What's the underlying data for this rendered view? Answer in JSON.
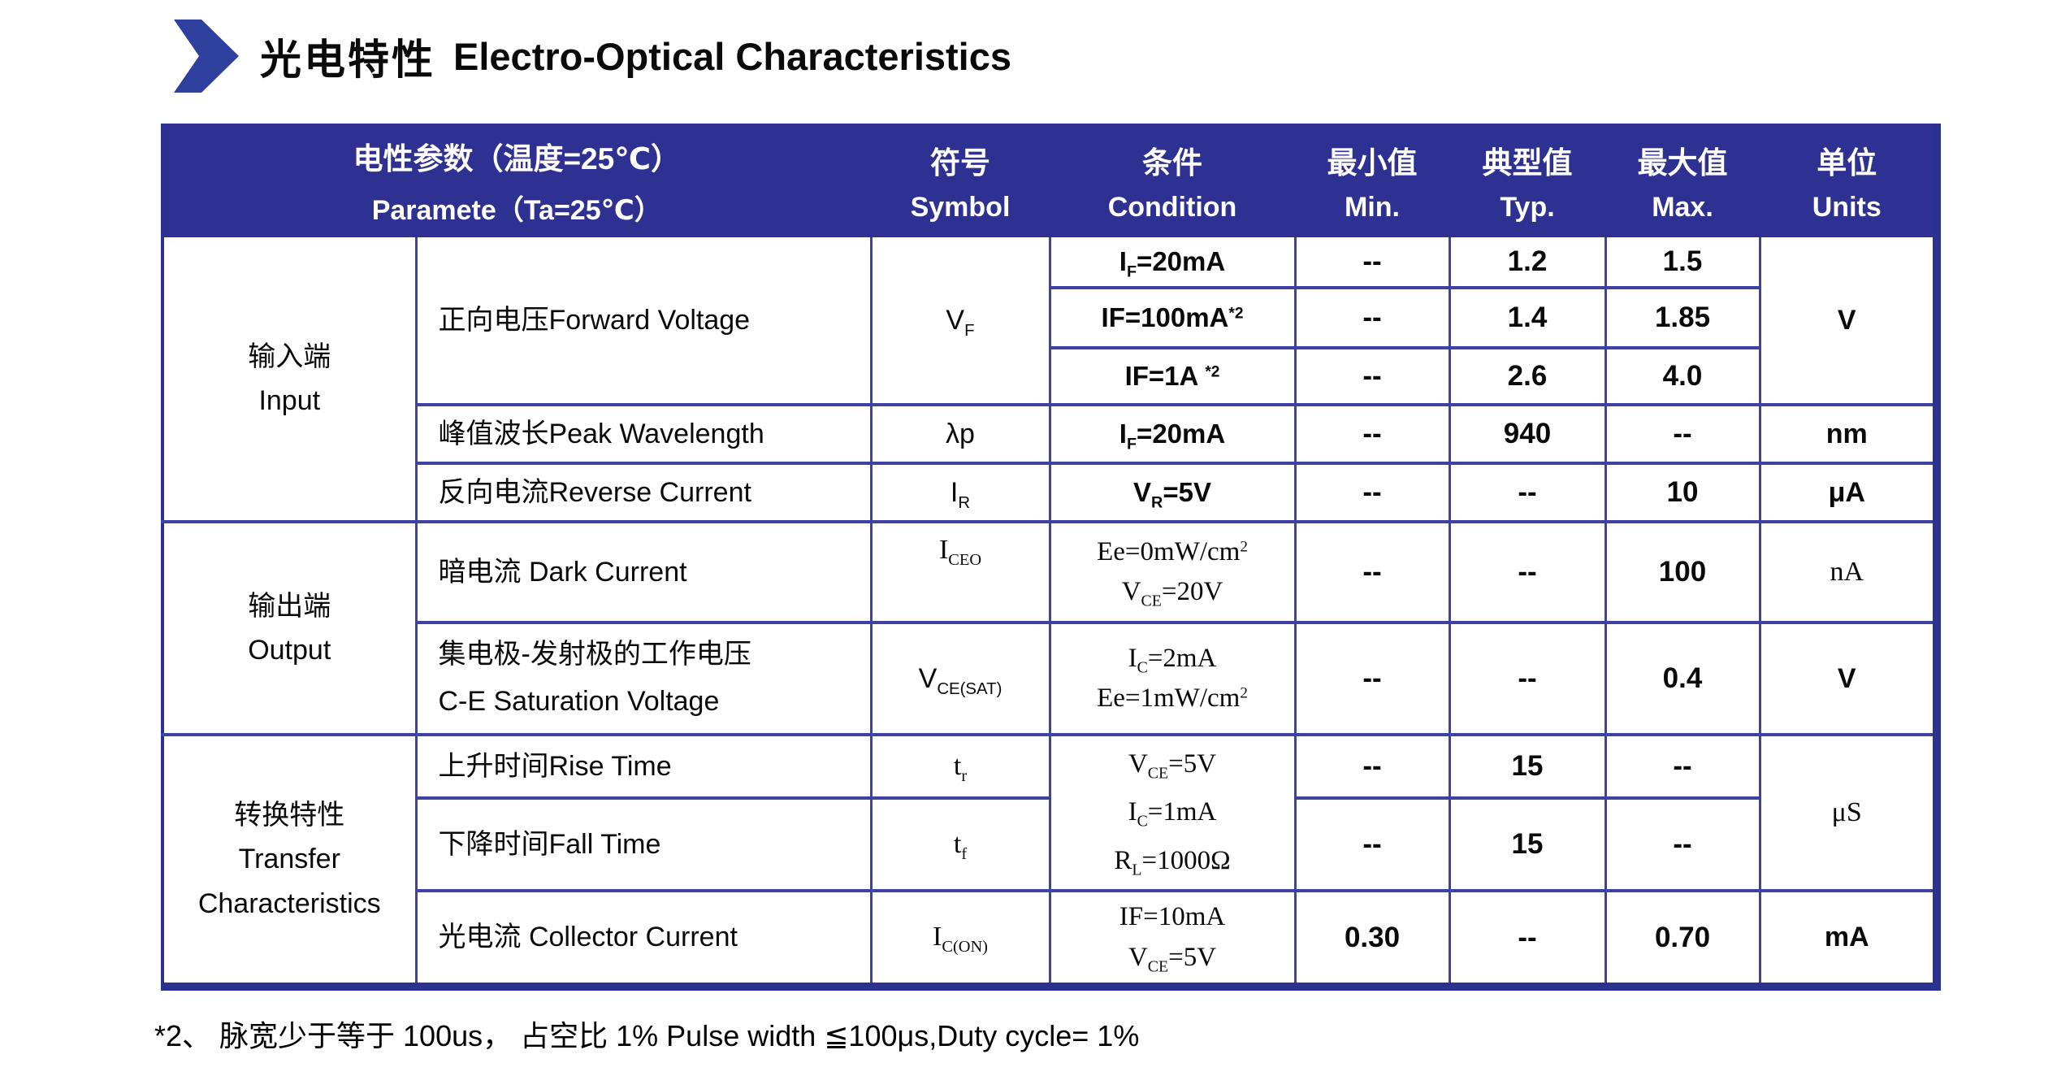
{
  "title": {
    "zh": "光电特性",
    "en": "Electro-Optical Characteristics"
  },
  "colors": {
    "header_bg": "#2e3192",
    "grid_line": "#3c43a2",
    "outer_border": "#2b3191",
    "chevron": "#2f3f9d",
    "header_text": "#ffffff",
    "body_text": "#0a0a0a"
  },
  "header": {
    "param": {
      "zh": "电性参数（温度=25℃）",
      "en": "Paramete（Ta=25℃）"
    },
    "symbol": {
      "zh": "符号",
      "en": "Symbol"
    },
    "condition": {
      "zh": "条件",
      "en": "Condition"
    },
    "min": {
      "zh": "最小值",
      "en": "Min."
    },
    "typ": {
      "zh": "典型值",
      "en": "Typ."
    },
    "max": {
      "zh": "最大值",
      "en": "Max."
    },
    "units": {
      "zh": "单位",
      "en": "Units"
    }
  },
  "groups": {
    "input": [
      [
        {
          "t": "输入端"
        }
      ],
      [
        {
          "t": "Input"
        }
      ]
    ],
    "output": [
      [
        {
          "t": "输出端"
        }
      ],
      [
        {
          "t": "Output"
        }
      ]
    ],
    "transfer": [
      [
        {
          "t": "转换特性"
        }
      ],
      [
        {
          "t": "Transfer"
        }
      ],
      [
        {
          "t": "Characteristics"
        }
      ]
    ]
  },
  "rows": {
    "vf": {
      "param": "正向电压Forward Voltage",
      "symbol": [
        {
          "t": "V"
        },
        {
          "sub": "F"
        }
      ],
      "sub": [
        {
          "cond": [
            {
              "t": "I"
            },
            {
              "sub": "F"
            },
            {
              "t": "=20mA"
            }
          ],
          "min": "--",
          "typ": "1.2",
          "max": "1.5"
        },
        {
          "cond": [
            {
              "t": "IF=100mA"
            },
            {
              "sup": "*2"
            }
          ],
          "min": "--",
          "typ": "1.4",
          "max": "1.85"
        },
        {
          "cond": [
            {
              "t": "IF=1A "
            },
            {
              "sup": "*2"
            }
          ],
          "min": "--",
          "typ": "2.6",
          "max": "4.0"
        }
      ],
      "unit": "V"
    },
    "wavelength": {
      "param": "峰值波长Peak Wavelength",
      "symbol": [
        {
          "t": "λp"
        }
      ],
      "cond": [
        {
          "t": "I"
        },
        {
          "sub": "F"
        },
        {
          "t": "=20mA"
        }
      ],
      "min": "--",
      "typ": "940",
      "max": "--",
      "unit": "nm"
    },
    "reverse": {
      "param": "反向电流Reverse Current",
      "symbol": [
        {
          "t": "I"
        },
        {
          "sub": "R"
        }
      ],
      "cond": [
        {
          "t": "V"
        },
        {
          "sub": "R"
        },
        {
          "t": "=5V"
        }
      ],
      "min": "--",
      "typ": "--",
      "max": "10",
      "unit": "μA"
    },
    "dark": {
      "param": "暗电流  Dark Current",
      "symbol": [
        {
          "t": "I"
        },
        {
          "sub": "CEO"
        }
      ],
      "cond": [
        [
          {
            "t": "Ee=0mW/cm"
          },
          {
            "sup": "2"
          }
        ],
        [
          {
            "t": "V"
          },
          {
            "sub": "CE"
          },
          {
            "t": "=20V"
          }
        ]
      ],
      "min": "--",
      "typ": "--",
      "max": "100",
      "unit": "nA"
    },
    "sat": {
      "param": [
        [
          {
            "t": "集电极-发射极的工作电压"
          }
        ],
        [
          {
            "t": "C-E Saturation Voltage"
          }
        ]
      ],
      "symbol": [
        {
          "t": "V"
        },
        {
          "sub": "CE(SAT)"
        }
      ],
      "cond": [
        [
          {
            "t": "I"
          },
          {
            "sub": "C"
          },
          {
            "t": "=2mA"
          }
        ],
        [
          {
            "t": "Ee=1mW/cm"
          },
          {
            "sup": "2"
          }
        ]
      ],
      "min": "--",
      "typ": "--",
      "max": "0.4",
      "unit": "V"
    },
    "rise": {
      "param": "上升时间Rise Time",
      "symbol": [
        {
          "t": "t"
        },
        {
          "sub": "r"
        }
      ],
      "min": "--",
      "typ": "15",
      "max": "--"
    },
    "fall": {
      "param": "下降时间Fall Time",
      "symbol": [
        {
          "t": "t"
        },
        {
          "sub": "f"
        }
      ],
      "min": "--",
      "typ": "15",
      "max": "--"
    },
    "transfer_cond": [
      [
        {
          "t": "V"
        },
        {
          "sub": "CE"
        },
        {
          "t": "=5V"
        }
      ],
      [
        {
          "t": "I"
        },
        {
          "sub": "C"
        },
        {
          "t": "=1mA"
        }
      ],
      [
        {
          "t": "R"
        },
        {
          "sub": "L"
        },
        {
          "t": "=1000Ω"
        }
      ]
    ],
    "transfer_unit": "μS",
    "collector": {
      "param": "光电流  Collector Current",
      "symbol": [
        {
          "t": "I"
        },
        {
          "sub": "C(ON)"
        }
      ],
      "cond": [
        [
          {
            "t": "IF=10mA"
          }
        ],
        [
          {
            "t": "V"
          },
          {
            "sub": "CE"
          },
          {
            "t": "=5V"
          }
        ]
      ],
      "min": "0.30",
      "typ": "--",
      "max": "0.70",
      "unit": "mA"
    }
  },
  "footnote": "*2、 脉宽少于等于  100us， 占空比  1% Pulse width ≦100μs,Duty cycle= 1%"
}
